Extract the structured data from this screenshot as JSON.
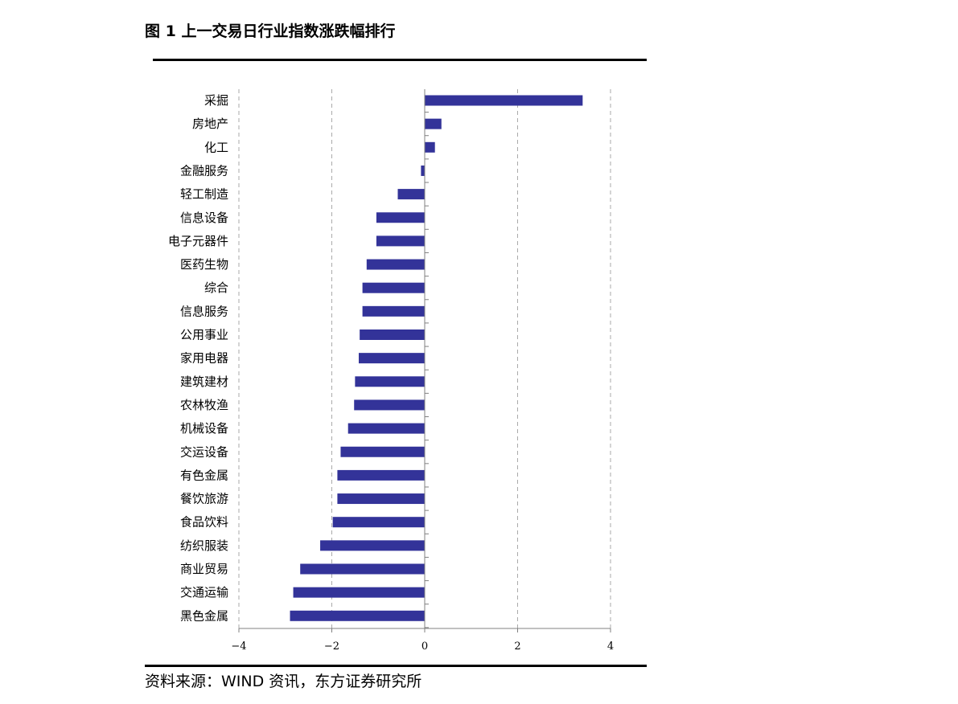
{
  "title": "图 1  上一交易日行业指数涨跌幅排行",
  "source": "资料来源：WIND 资讯，东方证券研究所",
  "chart_data": {
    "type": "bar",
    "orientation": "horizontal",
    "categories": [
      "采掘",
      "房地产",
      "化工",
      "金融服务",
      "轻工制造",
      "信息设备",
      "电子元器件",
      "医药生物",
      "综合",
      "信息服务",
      "公用事业",
      "家用电器",
      "建筑建材",
      "农林牧渔",
      "机械设备",
      "交运设备",
      "有色金属",
      "餐饮旅游",
      "食品饮料",
      "纺织服装",
      "商业贸易",
      "交通运输",
      "黑色金属"
    ],
    "values": [
      3.4,
      0.36,
      0.22,
      -0.08,
      -0.58,
      -1.04,
      -1.04,
      -1.25,
      -1.34,
      -1.34,
      -1.4,
      -1.42,
      -1.5,
      -1.52,
      -1.65,
      -1.81,
      -1.88,
      -1.88,
      -1.98,
      -2.25,
      -2.68,
      -2.83,
      -2.9
    ],
    "xlim": [
      -4,
      4
    ],
    "xticks": [
      "−4",
      "−2",
      "0",
      "2",
      "4"
    ],
    "xtick_values": [
      -4,
      -2,
      0,
      2,
      4
    ],
    "grid": "vertical dashed",
    "bar_color": "#333399"
  }
}
